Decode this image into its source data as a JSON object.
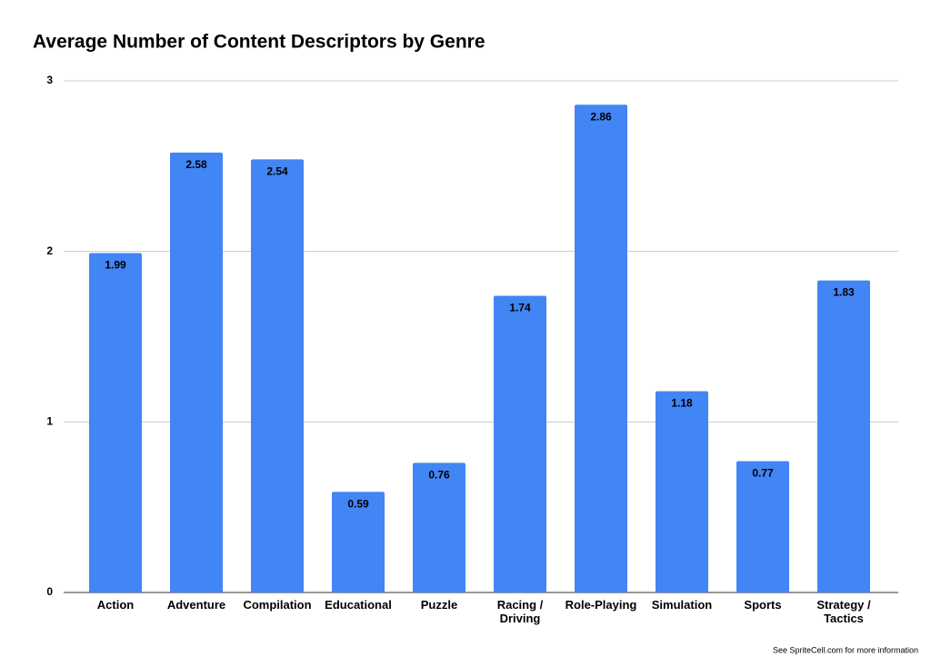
{
  "chart_data": {
    "type": "bar",
    "title": "Average Number of Content Descriptors by Genre",
    "categories": [
      "Action",
      "Adventure",
      "Compilation",
      "Educational",
      "Puzzle",
      "Racing / Driving",
      "Role-Playing",
      "Simulation",
      "Sports",
      "Strategy / Tactics"
    ],
    "values": [
      1.99,
      2.58,
      2.54,
      0.59,
      0.76,
      1.74,
      2.86,
      1.18,
      0.77,
      1.83
    ],
    "color": "#4285f4",
    "ylim": [
      0,
      3
    ],
    "yticks": [
      0,
      1,
      2,
      3
    ],
    "grid": true,
    "footnote": "See SpriteCell.com for more information"
  }
}
